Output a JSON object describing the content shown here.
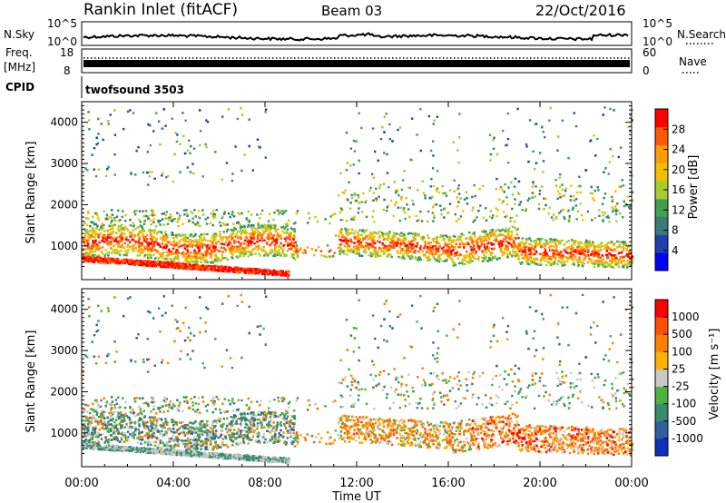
{
  "header": {
    "station": "Rankin Inlet (fitACF)",
    "beam": "Beam 03",
    "date": "22/Oct/2016"
  },
  "noise_panel": {
    "left_label": "N.Sky",
    "left_ticks": [
      "10^5",
      "10^0"
    ],
    "right_label": "N.Search",
    "right_ticks": [
      "10^5",
      "10^0"
    ]
  },
  "freq_panel": {
    "left_label_top": "Freq.",
    "left_label_unit": "[MHz]",
    "left_ticks": [
      "18",
      "8"
    ],
    "right_label": "Nave",
    "right_ticks": [
      "60",
      "0"
    ]
  },
  "cpid_panel": {
    "label": "CPID",
    "program": "twofsound 3503"
  },
  "chart_data": [
    {
      "type": "heatmap",
      "quantity": "Power",
      "ylabel": "Slant Range [km]",
      "yticks": [
        1000,
        2000,
        3000,
        4000
      ],
      "ylim": [
        180,
        4500
      ],
      "xlim": [
        0,
        24
      ],
      "xticks": [
        0,
        4,
        8,
        12,
        16,
        20,
        24
      ],
      "colorbar": {
        "label": "Power [dB]",
        "ticks": [
          4,
          8,
          12,
          16,
          20,
          24,
          28
        ],
        "range": [
          0,
          32
        ],
        "colors": [
          "#0000ff",
          "#2040b0",
          "#3a7a7a",
          "#40a050",
          "#a8cc30",
          "#f0c000",
          "#ff9a00",
          "#ff5a00",
          "#ff0000"
        ]
      }
    },
    {
      "type": "heatmap",
      "quantity": "Velocity",
      "ylabel": "Slant Range [km]",
      "yticks": [
        1000,
        2000,
        3000,
        4000
      ],
      "ylim": [
        180,
        4500
      ],
      "xlim": [
        0,
        24
      ],
      "xticks": [
        0,
        4,
        8,
        12,
        16,
        20,
        24
      ],
      "colorbar": {
        "label": "Velocity [m s⁻¹]",
        "ticks": [
          "1000",
          "500",
          "100",
          "25",
          "-25",
          "-100",
          "-500",
          "-1000"
        ],
        "colors": [
          "#1030c0",
          "#3060a0",
          "#3a8a70",
          "#50b040",
          "#c8c8c8",
          "#ffb000",
          "#ff8000",
          "#ff5000",
          "#ff0000"
        ]
      }
    }
  ],
  "xaxis": {
    "tick_labels": [
      "00:00",
      "04:00",
      "08:00",
      "12:00",
      "16:00",
      "20:00",
      "00:00"
    ],
    "label": "Time UT"
  }
}
